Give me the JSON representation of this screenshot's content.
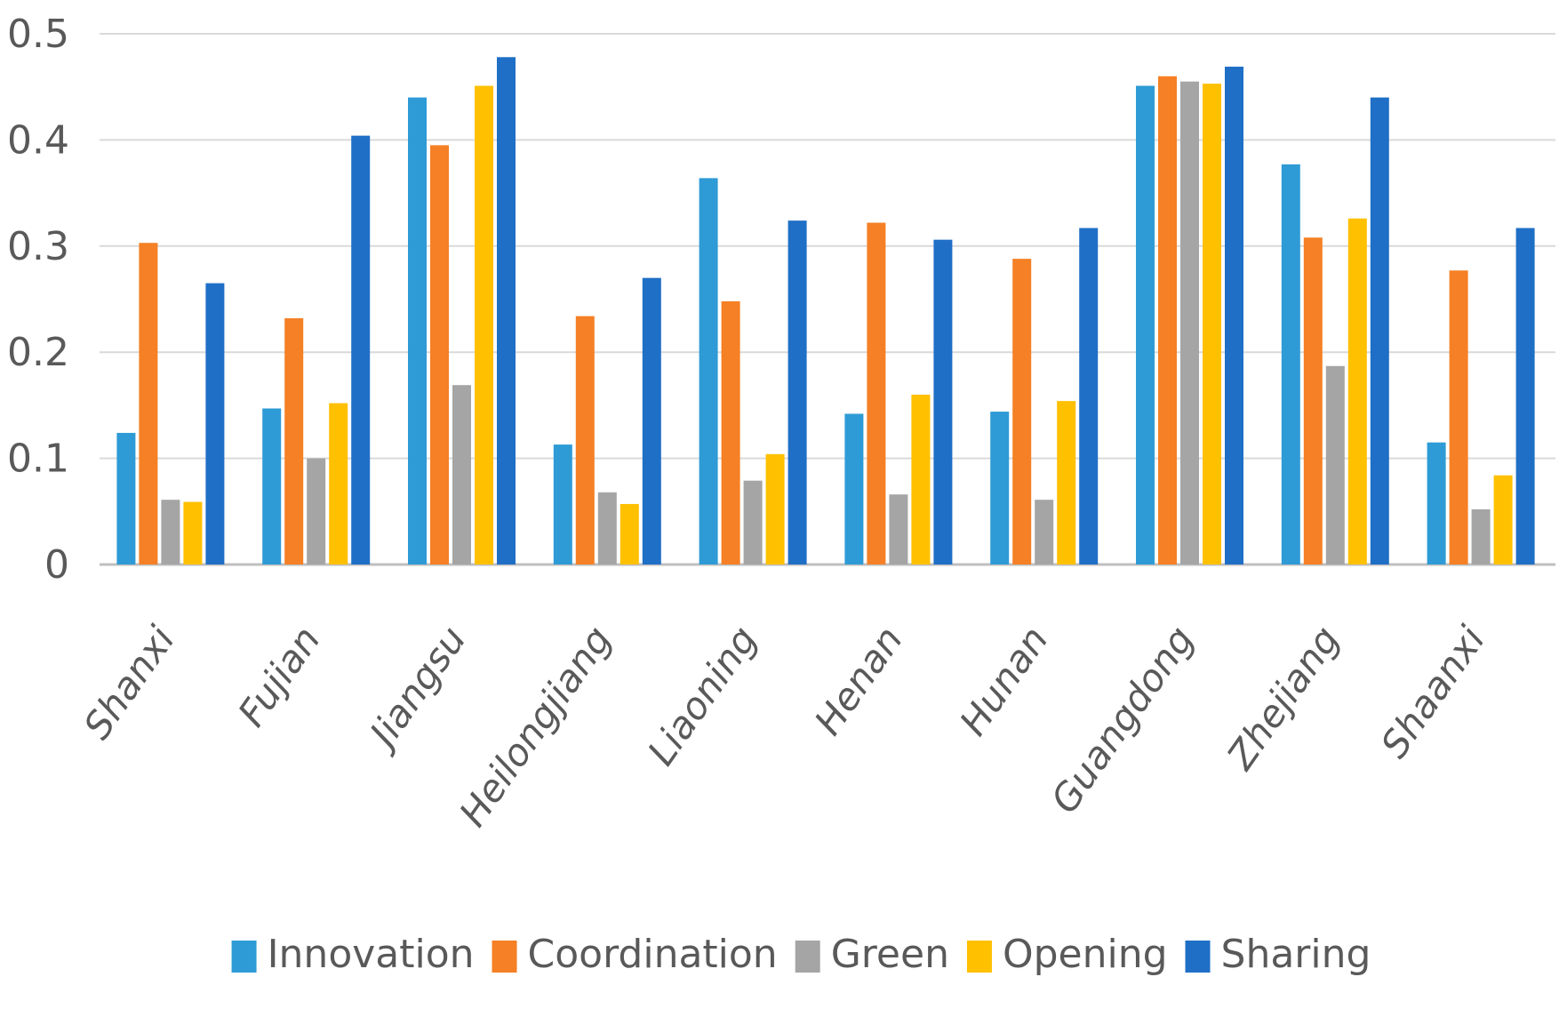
{
  "chart_data": {
    "type": "bar",
    "title": "",
    "xlabel": "",
    "ylabel": "",
    "ylim": [
      0,
      0.5
    ],
    "yticks": [
      0,
      0.1,
      0.2,
      0.3,
      0.4,
      0.5
    ],
    "ytick_labels": [
      "0",
      "0.1",
      "0.2",
      "0.3",
      "0.4",
      "0.5"
    ],
    "grid": true,
    "legend_position": "bottom",
    "categories": [
      "Shanxi",
      "Fujian",
      "Jiangsu",
      "Heilongjiang",
      "Liaoning",
      "Henan",
      "Hunan",
      "Guangdong",
      "Zhejiang",
      "Shaanxi"
    ],
    "series": [
      {
        "name": "Innovation",
        "color": "#2E9BD6",
        "values": [
          0.124,
          0.147,
          0.44,
          0.113,
          0.364,
          0.142,
          0.144,
          0.451,
          0.377,
          0.115
        ]
      },
      {
        "name": "Coordination",
        "color": "#F58025",
        "values": [
          0.303,
          0.232,
          0.395,
          0.234,
          0.248,
          0.322,
          0.288,
          0.46,
          0.308,
          0.277
        ]
      },
      {
        "name": "Green",
        "color": "#A5A5A5",
        "values": [
          0.061,
          0.1,
          0.169,
          0.068,
          0.079,
          0.066,
          0.061,
          0.455,
          0.187,
          0.052
        ]
      },
      {
        "name": "Opening",
        "color": "#FFC000",
        "values": [
          0.059,
          0.152,
          0.451,
          0.057,
          0.104,
          0.16,
          0.154,
          0.453,
          0.326,
          0.084
        ]
      },
      {
        "name": "Sharing",
        "color": "#1F6FC6",
        "values": [
          0.265,
          0.404,
          0.478,
          0.27,
          0.324,
          0.306,
          0.317,
          0.469,
          0.44,
          0.317
        ]
      }
    ]
  }
}
